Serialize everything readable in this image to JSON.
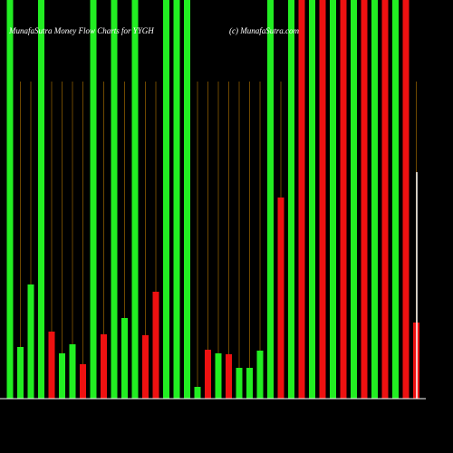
{
  "chart_data": {
    "type": "bar",
    "title": "MunafaSutra  Money Flow  Charts for YYGH",
    "credit": "(c) MunafaSutra.com",
    "ylim": [
      0,
      440
    ],
    "values": [
      440,
      57,
      126,
      440,
      74,
      50,
      60,
      38,
      440,
      71,
      440,
      89,
      440,
      70,
      118,
      440,
      440,
      440,
      13,
      54,
      50,
      49,
      34,
      34,
      53,
      440,
      222,
      440,
      440,
      440,
      440,
      440,
      440,
      440,
      440,
      440,
      440,
      440,
      440,
      84
    ],
    "colors": [
      "#22ee22",
      "#22ee22",
      "#22ee22",
      "#22ee22",
      "#ee1111",
      "#22ee22",
      "#22ee22",
      "#ee1111",
      "#22ee22",
      "#ee1111",
      "#22ee22",
      "#22ee22",
      "#22ee22",
      "#ee1111",
      "#ee1111",
      "#22ee22",
      "#22ee22",
      "#22ee22",
      "#22ee22",
      "#ee1111",
      "#22ee22",
      "#ee1111",
      "#22ee22",
      "#22ee22",
      "#22ee22",
      "#22ee22",
      "#ee1111",
      "#22ee22",
      "#ee1111",
      "#22ee22",
      "#ee1111",
      "#22ee22",
      "#ee1111",
      "#22ee22",
      "#ee1111",
      "#22ee22",
      "#ee1111",
      "#22ee22",
      "#ee1111",
      "#ee1111"
    ]
  }
}
